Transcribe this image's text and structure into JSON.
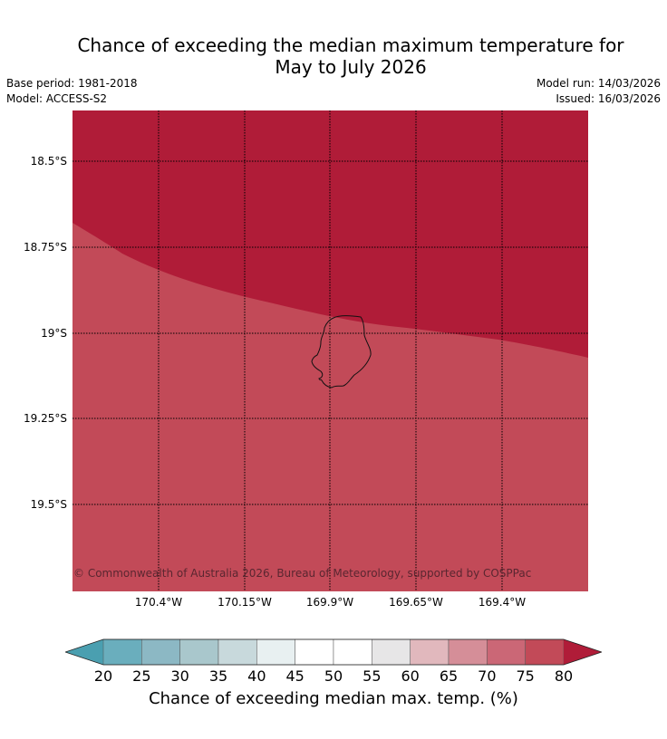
{
  "title": "Chance of exceeding the median maximum temperature for\nMay to July 2026",
  "meta": {
    "base_period": "Base period: 1981-2018",
    "model": "Model: ACCESS-S2",
    "model_run": "Model run: 14/03/2026",
    "issued": "Issued: 16/03/2026"
  },
  "map": {
    "latitude_labels": [
      "18.5°S",
      "18.75°S",
      "19°S",
      "19.25°S",
      "19.5°S"
    ],
    "longitude_labels": [
      "170.4°W",
      "170.15°W",
      "169.9°W",
      "169.65°W",
      "169.4°W"
    ],
    "credit": "© Commonwealth of Australia 2026, Bureau of Meteorology, supported by COSPPac",
    "regions": [
      {
        "category": "above 80%",
        "color": "#b01c38"
      },
      {
        "category": "75-80%",
        "color": "#c24a58"
      }
    ]
  },
  "colorbar": {
    "ticks": [
      "20",
      "25",
      "30",
      "35",
      "40",
      "45",
      "50",
      "55",
      "60",
      "65",
      "70",
      "75",
      "80"
    ],
    "colors": [
      "#4a9fb0",
      "#6aaebd",
      "#8cb8c4",
      "#a9c7cc",
      "#c8d9dc",
      "#e8f0f1",
      "#ffffff",
      "#ffffff",
      "#e7e6e7",
      "#e1b8bd",
      "#d58e98",
      "#cb6776",
      "#c24a58",
      "#b01c38"
    ],
    "label": "Chance of exceeding median max. temp. (%)"
  }
}
